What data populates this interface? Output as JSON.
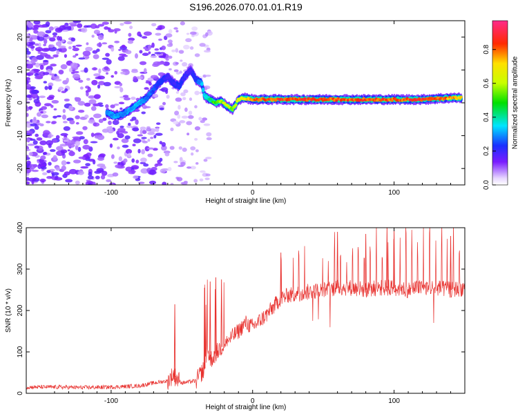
{
  "title": "S196.2026.070.01.01.R19",
  "chart_data": [
    {
      "type": "heatmap",
      "name": "spectrogram",
      "xlabel": "Height of straight line (km)",
      "ylabel": "Frequency (Hz)",
      "xlim": [
        -160,
        150
      ],
      "ylim": [
        -25,
        25
      ],
      "xticks": [
        -100,
        0,
        100
      ],
      "xtick_labels": [
        "-100",
        "0",
        "100"
      ],
      "yticks": [
        -20,
        -10,
        0,
        10,
        20
      ],
      "ytick_labels": [
        "-20",
        "-10",
        "0",
        "10",
        "20"
      ],
      "colorbar": {
        "label": "Normalized spectral amplitude",
        "range": [
          0,
          0.97
        ],
        "ticks": [
          0.0,
          0.2,
          0.4,
          0.6,
          0.8
        ],
        "tick_labels": [
          "0.0",
          "0.2",
          "0.4",
          "0.6",
          "0.8"
        ]
      },
      "ridge": {
        "x": [
          -103,
          -98,
          -92,
          -86,
          -80,
          -76,
          -72,
          -68,
          -64,
          -60,
          -56,
          -52,
          -48,
          -44,
          -40,
          -36,
          -34,
          -30,
          -26,
          -22,
          -18,
          -14,
          -10,
          -6,
          0,
          20,
          40,
          60,
          80,
          100,
          120,
          140,
          148
        ],
        "freq": [
          -3,
          -4,
          -3.5,
          -2,
          0,
          1,
          3,
          5,
          7,
          8,
          6,
          5,
          8,
          10,
          7,
          6,
          2,
          1,
          0,
          0.5,
          -1,
          -2,
          1,
          1.5,
          1,
          1,
          1,
          1,
          1,
          1,
          1,
          1.5,
          1.5
        ],
        "amplitude": [
          0.3,
          0.35,
          0.3,
          0.35,
          0.35,
          0.3,
          0.3,
          0.25,
          0.25,
          0.2,
          0.22,
          0.25,
          0.22,
          0.2,
          0.25,
          0.35,
          0.4,
          0.45,
          0.6,
          0.65,
          0.7,
          0.6,
          0.7,
          0.75,
          0.9,
          0.92,
          0.95,
          0.9,
          0.92,
          0.9,
          0.95,
          0.85,
          0.8
        ]
      }
    },
    {
      "type": "line",
      "name": "snr",
      "xlabel": "Height of straight line (km)",
      "ylabel": "SNR (10 * v/v)",
      "xlim": [
        -160,
        150
      ],
      "ylim": [
        0,
        400
      ],
      "xticks": [
        -100,
        0,
        100
      ],
      "xtick_labels": [
        "-100",
        "0",
        "100"
      ],
      "yticks": [
        0,
        100,
        200,
        300,
        400
      ],
      "ytick_labels": [
        "0",
        "100",
        "200",
        "300",
        "400"
      ],
      "series": [
        {
          "name": "SNR",
          "color": "#e8322f",
          "x": [
            -160,
            -140,
            -120,
            -100,
            -80,
            -70,
            -60,
            -56,
            -55,
            -50,
            -40,
            -34,
            -32,
            -30,
            -20,
            -10,
            -5,
            0,
            10,
            20,
            25,
            30,
            40,
            50,
            60,
            70,
            80,
            90,
            100,
            110,
            120,
            130,
            140,
            150
          ],
          "baseline": [
            15,
            15,
            14,
            15,
            18,
            25,
            30,
            45,
            40,
            25,
            30,
            60,
            110,
            80,
            120,
            150,
            170,
            160,
            190,
            230,
            235,
            240,
            245,
            250,
            255,
            255,
            250,
            255,
            255,
            250,
            255,
            255,
            250,
            255
          ],
          "spikes": [
            {
              "x": -55,
              "y": 215
            },
            {
              "x": -34,
              "y": 255
            },
            {
              "x": -30,
              "y": 270
            },
            {
              "x": -26,
              "y": 280
            },
            {
              "x": -22,
              "y": 275
            },
            {
              "x": 20,
              "y": 340
            },
            {
              "x": 60,
              "y": 390
            },
            {
              "x": 80,
              "y": 385
            },
            {
              "x": 95,
              "y": 400
            },
            {
              "x": 100,
              "y": 395
            },
            {
              "x": 140,
              "y": 380
            }
          ]
        }
      ]
    }
  ]
}
